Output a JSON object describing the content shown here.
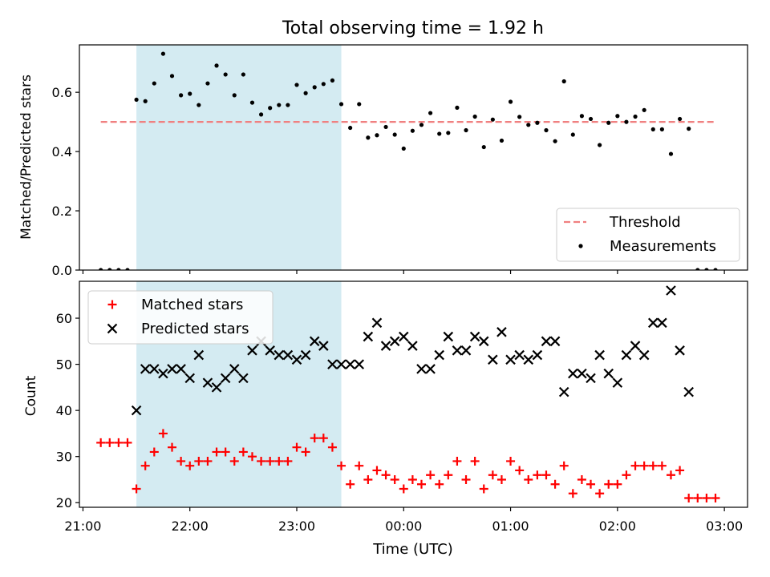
{
  "title": "Total observing time = 1.92 h",
  "xlabel": "Time (UTC)",
  "chart_data": [
    {
      "type": "scatter",
      "ylabel": "Matched/Predicted stars",
      "ylim": [
        0,
        0.76
      ],
      "yticks": [
        "0.0",
        "0.2",
        "0.4",
        "0.6"
      ],
      "ytick_values": [
        0,
        0.2,
        0.4,
        0.6
      ],
      "shaded_span": {
        "start": "21:30",
        "end": "23:25",
        "color": "#add8e6"
      },
      "threshold": {
        "name": "Threshold",
        "value": 0.5,
        "x_start": "21:10",
        "x_end": "02:55",
        "color": "#f08080",
        "style": "dashed"
      },
      "series": [
        {
          "name": "Measurements",
          "color": "#000000",
          "marker": "dot",
          "points": [
            [
              "21:10",
              0.0
            ],
            [
              "21:15",
              0.0
            ],
            [
              "21:20",
              0.0
            ],
            [
              "21:25",
              0.0
            ],
            [
              "21:30",
              0.575
            ],
            [
              "21:35",
              0.57
            ],
            [
              "21:40",
              0.63
            ],
            [
              "21:45",
              0.73
            ],
            [
              "21:50",
              0.655
            ],
            [
              "21:55",
              0.59
            ],
            [
              "22:00",
              0.595
            ],
            [
              "22:05",
              0.557
            ],
            [
              "22:10",
              0.63
            ],
            [
              "22:15",
              0.69
            ],
            [
              "22:20",
              0.66
            ],
            [
              "22:25",
              0.59
            ],
            [
              "22:30",
              0.66
            ],
            [
              "22:35",
              0.565
            ],
            [
              "22:40",
              0.525
            ],
            [
              "22:45",
              0.547
            ],
            [
              "22:50",
              0.557
            ],
            [
              "22:55",
              0.557
            ],
            [
              "23:00",
              0.625
            ],
            [
              "23:05",
              0.597
            ],
            [
              "23:10",
              0.617
            ],
            [
              "23:15",
              0.628
            ],
            [
              "23:20",
              0.64
            ],
            [
              "23:25",
              0.56
            ],
            [
              "23:30",
              0.48
            ],
            [
              "23:35",
              0.56
            ],
            [
              "23:40",
              0.447
            ],
            [
              "23:45",
              0.455
            ],
            [
              "23:50",
              0.483
            ],
            [
              "23:55",
              0.457
            ],
            [
              "00:00",
              0.41
            ],
            [
              "00:05",
              0.47
            ],
            [
              "00:10",
              0.49
            ],
            [
              "00:15",
              0.53
            ],
            [
              "00:20",
              0.46
            ],
            [
              "00:25",
              0.463
            ],
            [
              "00:30",
              0.548
            ],
            [
              "00:35",
              0.472
            ],
            [
              "00:40",
              0.518
            ],
            [
              "00:45",
              0.415
            ],
            [
              "00:50",
              0.508
            ],
            [
              "00:55",
              0.437
            ],
            [
              "01:00",
              0.568
            ],
            [
              "01:05",
              0.517
            ],
            [
              "01:10",
              0.49
            ],
            [
              "01:15",
              0.497
            ],
            [
              "01:20",
              0.472
            ],
            [
              "01:25",
              0.435
            ],
            [
              "01:30",
              0.637
            ],
            [
              "01:35",
              0.457
            ],
            [
              "01:40",
              0.52
            ],
            [
              "01:45",
              0.51
            ],
            [
              "01:50",
              0.422
            ],
            [
              "01:55",
              0.497
            ],
            [
              "02:00",
              0.52
            ],
            [
              "02:05",
              0.5
            ],
            [
              "02:10",
              0.518
            ],
            [
              "02:15",
              0.54
            ],
            [
              "02:20",
              0.475
            ],
            [
              "02:25",
              0.475
            ],
            [
              "02:30",
              0.392
            ],
            [
              "02:35",
              0.51
            ],
            [
              "02:40",
              0.477
            ],
            [
              "02:45",
              0.0
            ],
            [
              "02:50",
              0.0
            ],
            [
              "02:55",
              0.0
            ]
          ]
        }
      ],
      "legend": {
        "placement": "lower-right",
        "entries": [
          "Threshold",
          "Measurements"
        ]
      }
    },
    {
      "type": "scatter",
      "ylabel": "Count",
      "ylim": [
        19,
        68
      ],
      "yticks": [
        "20",
        "30",
        "40",
        "50",
        "60"
      ],
      "ytick_values": [
        20,
        30,
        40,
        50,
        60
      ],
      "shaded_span": {
        "start": "21:30",
        "end": "23:25",
        "color": "#add8e6"
      },
      "series": [
        {
          "name": "Matched stars",
          "color": "#ff0000",
          "marker": "plus",
          "points": [
            [
              "21:10",
              33
            ],
            [
              "21:15",
              33
            ],
            [
              "21:20",
              33
            ],
            [
              "21:25",
              33
            ],
            [
              "21:30",
              23
            ],
            [
              "21:35",
              28
            ],
            [
              "21:40",
              31
            ],
            [
              "21:45",
              35
            ],
            [
              "21:50",
              32
            ],
            [
              "21:55",
              29
            ],
            [
              "22:00",
              28
            ],
            [
              "22:05",
              29
            ],
            [
              "22:10",
              29
            ],
            [
              "22:15",
              31
            ],
            [
              "22:20",
              31
            ],
            [
              "22:25",
              29
            ],
            [
              "22:30",
              31
            ],
            [
              "22:35",
              30
            ],
            [
              "22:40",
              29
            ],
            [
              "22:45",
              29
            ],
            [
              "22:50",
              29
            ],
            [
              "22:55",
              29
            ],
            [
              "23:00",
              32
            ],
            [
              "23:05",
              31
            ],
            [
              "23:10",
              34
            ],
            [
              "23:15",
              34
            ],
            [
              "23:20",
              32
            ],
            [
              "23:25",
              28
            ],
            [
              "23:30",
              24
            ],
            [
              "23:35",
              28
            ],
            [
              "23:40",
              25
            ],
            [
              "23:45",
              27
            ],
            [
              "23:50",
              26
            ],
            [
              "23:55",
              25
            ],
            [
              "00:00",
              23
            ],
            [
              "00:05",
              25
            ],
            [
              "00:10",
              24
            ],
            [
              "00:15",
              26
            ],
            [
              "00:20",
              24
            ],
            [
              "00:25",
              26
            ],
            [
              "00:30",
              29
            ],
            [
              "00:35",
              25
            ],
            [
              "00:40",
              29
            ],
            [
              "00:45",
              23
            ],
            [
              "00:50",
              26
            ],
            [
              "00:55",
              25
            ],
            [
              "01:00",
              29
            ],
            [
              "01:05",
              27
            ],
            [
              "01:10",
              25
            ],
            [
              "01:15",
              26
            ],
            [
              "01:20",
              26
            ],
            [
              "01:25",
              24
            ],
            [
              "01:30",
              28
            ],
            [
              "01:35",
              22
            ],
            [
              "01:40",
              25
            ],
            [
              "01:45",
              24
            ],
            [
              "01:50",
              22
            ],
            [
              "01:55",
              24
            ],
            [
              "02:00",
              24
            ],
            [
              "02:05",
              26
            ],
            [
              "02:10",
              28
            ],
            [
              "02:15",
              28
            ],
            [
              "02:20",
              28
            ],
            [
              "02:25",
              28
            ],
            [
              "02:30",
              26
            ],
            [
              "02:35",
              27
            ],
            [
              "02:40",
              21
            ],
            [
              "02:45",
              21
            ],
            [
              "02:50",
              21
            ],
            [
              "02:55",
              21
            ]
          ]
        },
        {
          "name": "Predicted stars",
          "color": "#000000",
          "marker": "x",
          "points": [
            [
              "21:30",
              40
            ],
            [
              "21:35",
              49
            ],
            [
              "21:40",
              49
            ],
            [
              "21:45",
              48
            ],
            [
              "21:50",
              49
            ],
            [
              "21:55",
              49
            ],
            [
              "22:00",
              47
            ],
            [
              "22:05",
              52
            ],
            [
              "22:10",
              46
            ],
            [
              "22:15",
              45
            ],
            [
              "22:20",
              47
            ],
            [
              "22:25",
              49
            ],
            [
              "22:30",
              47
            ],
            [
              "22:35",
              53
            ],
            [
              "22:40",
              55
            ],
            [
              "22:45",
              53
            ],
            [
              "22:50",
              52
            ],
            [
              "22:55",
              52
            ],
            [
              "23:00",
              51
            ],
            [
              "23:05",
              52
            ],
            [
              "23:10",
              55
            ],
            [
              "23:15",
              54
            ],
            [
              "23:20",
              50
            ],
            [
              "23:25",
              50
            ],
            [
              "23:30",
              50
            ],
            [
              "23:35",
              50
            ],
            [
              "23:40",
              56
            ],
            [
              "23:45",
              59
            ],
            [
              "23:50",
              54
            ],
            [
              "23:55",
              55
            ],
            [
              "00:00",
              56
            ],
            [
              "00:05",
              54
            ],
            [
              "00:10",
              49
            ],
            [
              "00:15",
              49
            ],
            [
              "00:20",
              52
            ],
            [
              "00:25",
              56
            ],
            [
              "00:30",
              53
            ],
            [
              "00:35",
              53
            ],
            [
              "00:40",
              56
            ],
            [
              "00:45",
              55
            ],
            [
              "00:50",
              51
            ],
            [
              "00:55",
              57
            ],
            [
              "01:00",
              51
            ],
            [
              "01:05",
              52
            ],
            [
              "01:10",
              51
            ],
            [
              "01:15",
              52
            ],
            [
              "01:20",
              55
            ],
            [
              "01:25",
              55
            ],
            [
              "01:30",
              44
            ],
            [
              "01:35",
              48
            ],
            [
              "01:40",
              48
            ],
            [
              "01:45",
              47
            ],
            [
              "01:50",
              52
            ],
            [
              "01:55",
              48
            ],
            [
              "02:00",
              46
            ],
            [
              "02:05",
              52
            ],
            [
              "02:10",
              54
            ],
            [
              "02:15",
              52
            ],
            [
              "02:20",
              59
            ],
            [
              "02:25",
              59
            ],
            [
              "02:30",
              66
            ],
            [
              "02:35",
              53
            ],
            [
              "02:40",
              44
            ]
          ]
        }
      ],
      "legend": {
        "placement": "upper-left",
        "entries": [
          "Matched stars",
          "Predicted stars"
        ]
      }
    }
  ],
  "x_axis": {
    "range": [
      "20:58",
      "03:13"
    ],
    "ticks": [
      "21:00",
      "22:00",
      "23:00",
      "00:00",
      "01:00",
      "02:00",
      "03:00"
    ]
  },
  "colors": {
    "axis": "#000000",
    "background": "#ffffff"
  }
}
